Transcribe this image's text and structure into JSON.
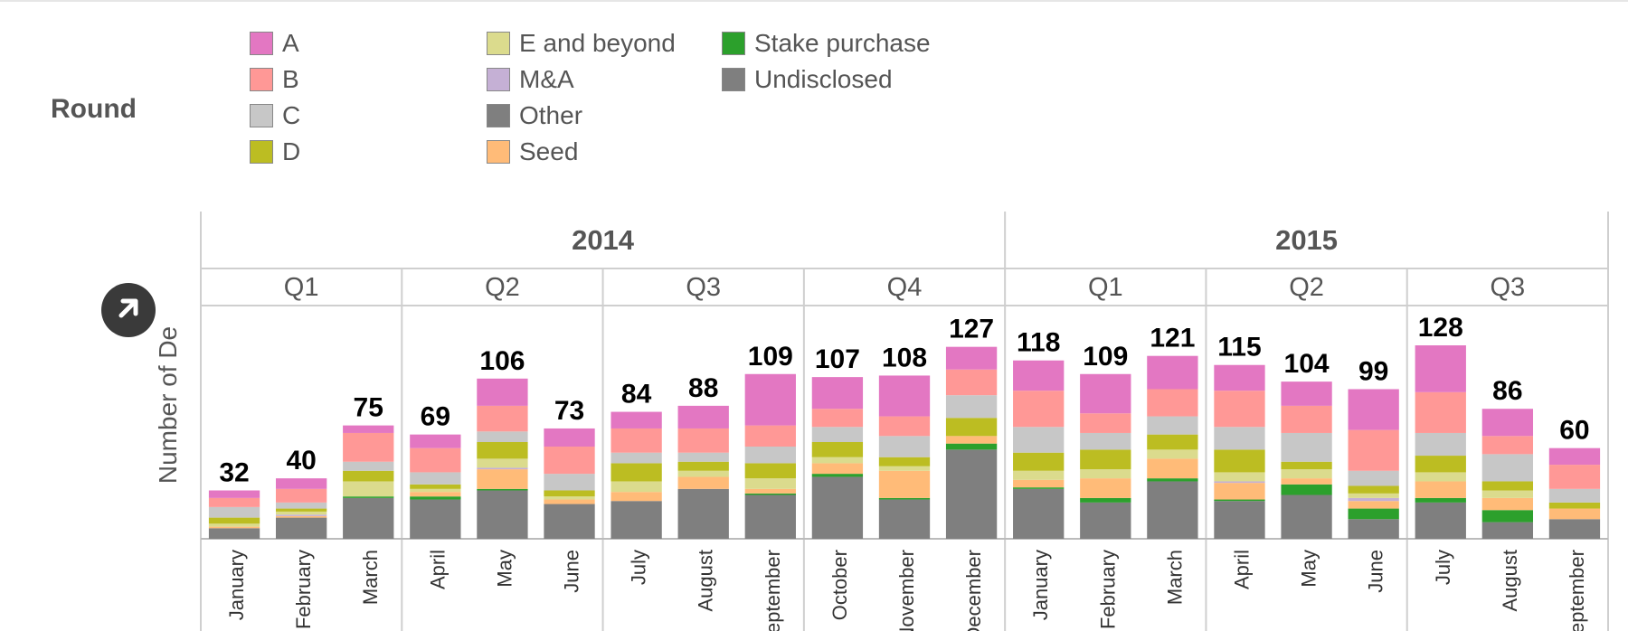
{
  "legend": {
    "title": "Round",
    "items": [
      {
        "label": "A",
        "color": "#e377c2"
      },
      {
        "label": "B",
        "color": "#ff9896"
      },
      {
        "label": "C",
        "color": "#c7c7c7"
      },
      {
        "label": "D",
        "color": "#bcbd22"
      },
      {
        "label": "E and beyond",
        "color": "#dbdb8d"
      },
      {
        "label": "M&A",
        "color": "#c5b0d5"
      },
      {
        "label": "Other",
        "color": "#7f7f7f"
      },
      {
        "label": "Seed",
        "color": "#ffbb78"
      },
      {
        "label": "Stake purchase",
        "color": "#2ca02c"
      },
      {
        "label": "Undisclosed",
        "color": "#7f7f7f"
      }
    ]
  },
  "icons": {
    "expand": "arrow-up-right-icon"
  },
  "chart_data": {
    "type": "bar",
    "stacked": true,
    "ylabel": "Number of Deals",
    "ylabel_visible": "Number of De",
    "years": [
      {
        "label": "2014",
        "quarters": [
          "Q1",
          "Q2",
          "Q3",
          "Q4"
        ]
      },
      {
        "label": "2015",
        "quarters": [
          "Q1",
          "Q2",
          "Q3"
        ]
      }
    ],
    "categories": [
      "January",
      "February",
      "March",
      "April",
      "May",
      "June",
      "July",
      "August",
      "September",
      "October",
      "November",
      "December",
      "January",
      "February",
      "March",
      "April",
      "May",
      "June",
      "July",
      "August",
      "September"
    ],
    "totals": [
      32,
      40,
      75,
      69,
      106,
      73,
      84,
      88,
      109,
      107,
      108,
      127,
      118,
      109,
      121,
      115,
      104,
      99,
      128,
      86,
      60
    ],
    "stack_order": [
      "Undisclosed",
      "Stake purchase",
      "Seed",
      "M&A",
      "E and beyond",
      "D",
      "C",
      "B",
      "A"
    ],
    "series": [
      {
        "name": "Undisclosed",
        "color": "#7f7f7f",
        "values": [
          7,
          14,
          27,
          26,
          32,
          23,
          25,
          33,
          29,
          41,
          26,
          59,
          33,
          24,
          38,
          25,
          29,
          13,
          24,
          11,
          13
        ]
      },
      {
        "name": "Stake purchase",
        "color": "#2ca02c",
        "values": [
          0,
          0,
          1,
          2,
          1,
          0,
          0,
          0,
          1,
          2,
          1,
          4,
          1,
          3,
          2,
          1,
          7,
          7,
          3,
          8,
          0
        ]
      },
      {
        "name": "Seed",
        "color": "#ffbb78",
        "values": [
          1,
          1,
          0,
          3,
          13,
          3,
          6,
          8,
          3,
          7,
          18,
          5,
          5,
          13,
          13,
          11,
          4,
          5,
          11,
          8,
          7
        ]
      },
      {
        "name": "M&A",
        "color": "#c5b0d5",
        "values": [
          0,
          1,
          0,
          0,
          1,
          0,
          0,
          0,
          0,
          0,
          0,
          0,
          0,
          0,
          0,
          1,
          0,
          2,
          0,
          0,
          0
        ]
      },
      {
        "name": "E and beyond",
        "color": "#dbdb8d",
        "values": [
          2,
          2,
          10,
          2,
          6,
          2,
          7,
          4,
          7,
          4,
          3,
          0,
          6,
          6,
          6,
          6,
          6,
          3,
          6,
          5,
          0
        ]
      },
      {
        "name": "D",
        "color": "#bcbd22",
        "values": [
          4,
          2,
          7,
          3,
          11,
          4,
          12,
          6,
          10,
          10,
          6,
          12,
          12,
          13,
          10,
          15,
          5,
          5,
          11,
          6,
          4
        ]
      },
      {
        "name": "C",
        "color": "#c7c7c7",
        "values": [
          7,
          4,
          6,
          8,
          7,
          11,
          7,
          6,
          11,
          10,
          14,
          15,
          17,
          11,
          12,
          15,
          19,
          10,
          15,
          18,
          9
        ]
      },
      {
        "name": "B",
        "color": "#ff9896",
        "values": [
          6,
          9,
          19,
          16,
          17,
          18,
          16,
          16,
          14,
          12,
          13,
          17,
          24,
          13,
          18,
          24,
          18,
          27,
          27,
          12,
          16
        ]
      },
      {
        "name": "A",
        "color": "#e377c2",
        "values": [
          5,
          7,
          5,
          9,
          18,
          12,
          11,
          15,
          34,
          21,
          27,
          15,
          20,
          26,
          22,
          17,
          16,
          27,
          31,
          18,
          11
        ]
      }
    ],
    "ylim": [
      0,
      140
    ],
    "grid": false,
    "legend_position": "top"
  }
}
